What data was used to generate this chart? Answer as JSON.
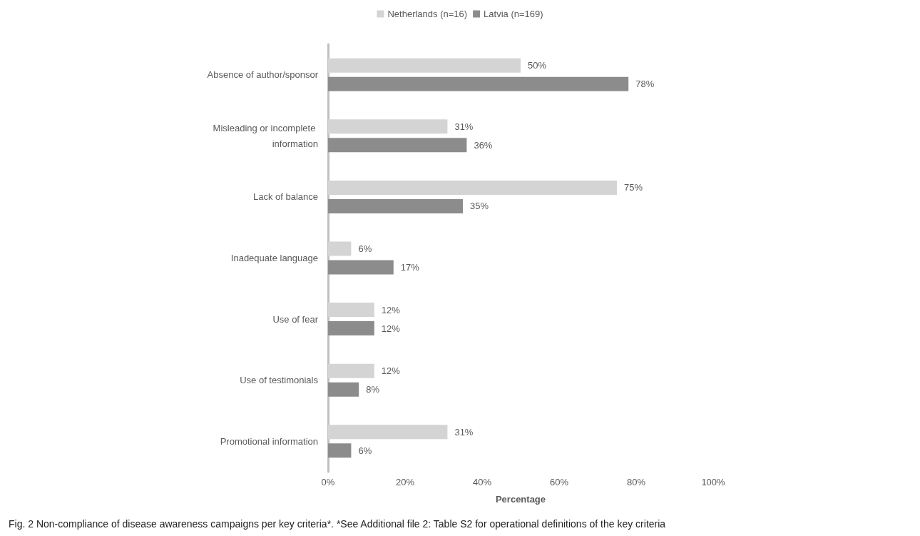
{
  "chart_data": {
    "type": "bar",
    "orientation": "horizontal",
    "xlabel": "Percentage",
    "categories": [
      "Absence of author/sponsor",
      "Misleading or incomplete information",
      "Lack of balance",
      "Inadequate language",
      "Use of fear",
      "Use of testimonials",
      "Promotional information"
    ],
    "series": [
      {
        "name": "Netherlands (n=16)",
        "color": "#d4d4d4",
        "values": [
          50,
          31,
          75,
          6,
          12,
          12,
          31
        ],
        "value_labels": [
          "50%",
          "31%",
          "75%",
          "6%",
          "12%",
          "12%",
          "31%"
        ]
      },
      {
        "name": "Latvia (n=169)",
        "color": "#8c8c8c",
        "values": [
          78,
          36,
          35,
          17,
          12,
          8,
          6
        ],
        "value_labels": [
          "78%",
          "36%",
          "35%",
          "17%",
          "12%",
          "8%",
          "6%"
        ]
      }
    ],
    "xlim": [
      0,
      100
    ],
    "xticks": [
      {
        "value": 0,
        "label": "0%"
      },
      {
        "value": 20,
        "label": "20%"
      },
      {
        "value": 40,
        "label": "40%"
      },
      {
        "value": 60,
        "label": "60%"
      },
      {
        "value": 80,
        "label": "80%"
      },
      {
        "value": 100,
        "label": "100%"
      }
    ],
    "grid": false,
    "legend": "top",
    "annotations": [
      "Fig. 2 Non-compliance of disease awareness campaigns per key criteria*. *See Additional file 2: Table S2 for operational definitions of the key criteria"
    ]
  }
}
